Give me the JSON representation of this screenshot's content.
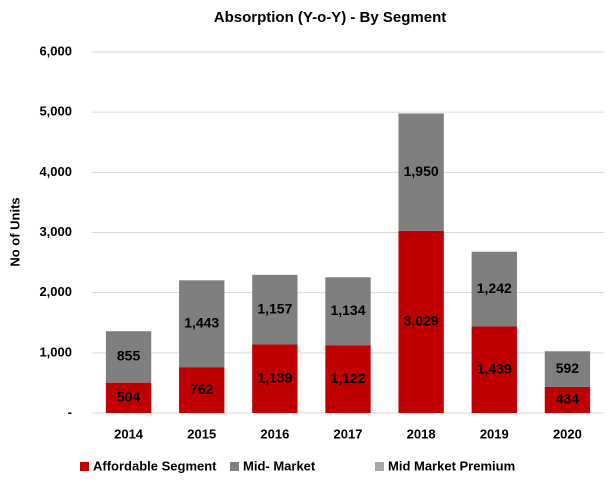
{
  "chart_data": {
    "type": "stacked_bar",
    "title": "Absorption (Y-o-Y) - By Segment",
    "y_label": "No of Units",
    "categories": [
      "2014",
      "2015",
      "2016",
      "2017",
      "2018",
      "2019",
      "2020"
    ],
    "series": [
      {
        "name": "Affordable Segment",
        "color": "#c00000",
        "values": [
          504,
          762,
          1139,
          1122,
          3029,
          1439,
          434
        ],
        "value_labels": [
          "504",
          "762",
          "1,139",
          "1,122",
          "3,029",
          "1,439",
          "434"
        ]
      },
      {
        "name": "Mid- Market",
        "color": "#7f7f7f",
        "values": [
          855,
          1443,
          1157,
          1134,
          1950,
          1242,
          592
        ],
        "value_labels": [
          "855",
          "1,443",
          "1,157",
          "1,134",
          "1,950",
          "1,242",
          "592"
        ]
      },
      {
        "name": "Mid Market Premium",
        "color": "#a6a6a6",
        "values": [
          null,
          null,
          null,
          null,
          null,
          null,
          null
        ]
      }
    ],
    "ylim": [
      0,
      6000
    ],
    "yticks": [
      {
        "value": 0,
        "label": "-"
      },
      {
        "value": 1000,
        "label": "1,000"
      },
      {
        "value": 2000,
        "label": "2,000"
      },
      {
        "value": 3000,
        "label": "3,000"
      },
      {
        "value": 4000,
        "label": "4,000"
      },
      {
        "value": 5000,
        "label": "5,000"
      },
      {
        "value": 6000,
        "label": "6,000"
      }
    ],
    "grid": true,
    "legend": "bottom"
  }
}
